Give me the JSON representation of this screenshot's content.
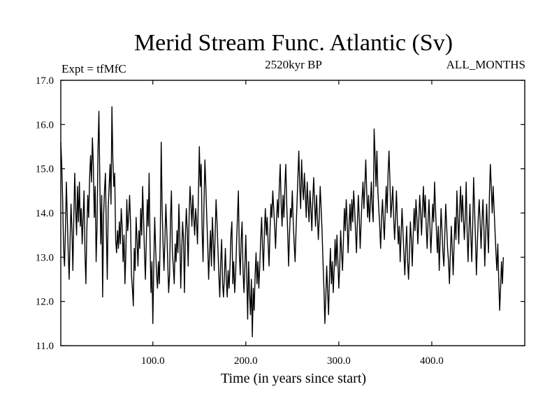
{
  "chart_data": {
    "type": "line",
    "title": "Merid Stream Func. Atlantic (Sv)",
    "subtitle_left": "Expt = tfMfC",
    "subtitle_center": "2520kyr BP",
    "subtitle_right": "ALL_MONTHS",
    "xlabel": "Time (in years since start)",
    "ylabel": "",
    "xlim": [
      1,
      500
    ],
    "ylim": [
      11.0,
      17.0
    ],
    "xticks": [
      100,
      200,
      300,
      400
    ],
    "xtick_labels": [
      "100.0",
      "200.0",
      "300.0",
      "400.0"
    ],
    "yticks": [
      11,
      12,
      13,
      14,
      15,
      16,
      17
    ],
    "ytick_labels": [
      "11.0",
      "12.0",
      "13.0",
      "14.0",
      "15.0",
      "16.0",
      "17.0"
    ],
    "series": [
      {
        "name": "Merid Stream Func. Atlantic",
        "color": "#000000",
        "x_start": 1,
        "x_step": 1,
        "values": [
          15.6,
          15.1,
          14.3,
          13.2,
          12.8,
          13.6,
          14.7,
          13.9,
          13.1,
          12.5,
          13.4,
          14.2,
          13.6,
          12.7,
          13.9,
          14.9,
          14.1,
          13.5,
          14.6,
          13.8,
          14.7,
          13.7,
          14.1,
          13.3,
          13.9,
          14.5,
          13.1,
          12.4,
          13.6,
          14.4,
          13.9,
          14.8,
          15.3,
          14.7,
          15.7,
          15.1,
          13.9,
          14.6,
          12.9,
          13.7,
          15.4,
          16.3,
          14.7,
          13.3,
          14.4,
          12.1,
          13.9,
          14.5,
          14.9,
          13.6,
          12.5,
          14.1,
          14.6,
          15.1,
          14.2,
          16.4,
          15.2,
          14.6,
          14.9,
          13.4,
          13.1,
          13.6,
          13.2,
          13.8,
          13.3,
          14.1,
          13.7,
          12.9,
          13.5,
          12.4,
          13.1,
          14.3,
          13.6,
          13.9,
          14.4,
          13.8,
          12.6,
          12.3,
          11.9,
          13.2,
          12.7,
          13.9,
          13.4,
          12.8,
          13.6,
          13.2,
          14.1,
          13.5,
          14.6,
          13.9,
          13.1,
          12.5,
          13.4,
          14.3,
          13.7,
          14.9,
          13.3,
          12.2,
          12.9,
          11.5,
          12.8,
          13.9,
          13.2,
          12.6,
          12.3,
          12.9,
          12.4,
          13.5,
          15.6,
          14.1,
          13.3,
          12.7,
          13.4,
          14.2,
          13.6,
          12.9,
          12.2,
          12.6,
          13.9,
          14.5,
          13.1,
          12.8,
          12.4,
          13.3,
          12.9,
          13.6,
          13.1,
          14.2,
          13.5,
          12.3,
          13.1,
          13.8,
          13.4,
          12.2,
          13.5,
          14.1,
          13.6,
          12.8,
          13.9,
          14.6,
          14.2,
          13.7,
          14.4,
          13.9,
          13.5,
          14.1,
          13.8,
          13.3,
          14.4,
          15.5,
          14.6,
          15.1,
          13.6,
          12.9,
          14.2,
          15.2,
          14.6,
          13.9,
          13.3,
          12.5,
          13.1,
          13.6,
          12.8,
          13.9,
          13.4,
          12.7,
          13.5,
          14.3,
          13.8,
          13.2,
          12.6,
          12.1,
          12.9,
          13.4,
          12.4,
          12.1,
          12.6,
          13.2,
          12.5,
          12.1,
          12.7,
          12.3,
          12.8,
          13.5,
          13.8,
          12.4,
          12.9,
          12.2,
          12.6,
          13.3,
          13.9,
          14.5,
          13.1,
          12.6,
          13.4,
          13.8,
          12.7,
          12.2,
          12.8,
          13.5,
          12.6,
          11.6,
          12.9,
          12.2,
          11.7,
          12.5,
          11.2,
          12.3,
          11.8,
          12.6,
          13.1,
          12.4,
          12.9,
          12.3,
          12.8,
          13.4,
          13.9,
          13.2,
          12.7,
          13.6,
          14.1,
          13.5,
          13.9,
          13.3,
          12.8,
          13.6,
          14.2,
          13.9,
          14.5,
          14.1,
          13.7,
          13.2,
          13.8,
          14.3,
          13.9,
          14.6,
          15.1,
          14.2,
          13.7,
          14.4,
          13.9,
          14.6,
          15.1,
          14.2,
          13.6,
          12.8,
          13.5,
          14.1,
          13.9,
          14.5,
          13.8,
          13.3,
          12.9,
          13.6,
          14.2,
          14.8,
          15.4,
          14.6,
          14.1,
          15.2,
          14.6,
          14.3,
          14.9,
          14.4,
          13.9,
          14.7,
          14.2,
          13.8,
          14.5,
          14.1,
          13.6,
          14.3,
          14.8,
          14.2,
          13.7,
          14.4,
          13.9,
          13.4,
          13.9,
          14.6,
          14.1,
          13.6,
          12.9,
          12.3,
          11.5,
          12.1,
          12.8,
          12.2,
          11.7,
          12.6,
          13.2,
          12.4,
          12.9,
          12.2,
          12.7,
          13.4,
          12.8,
          13.5,
          12.9,
          12.3,
          12.8,
          13.6,
          13.1,
          12.7,
          13.4,
          14.1,
          13.6,
          14.3,
          13.8,
          13.1,
          13.7,
          14.2,
          13.6,
          14.3,
          13.8,
          14.5,
          14.1,
          13.6,
          13.1,
          13.8,
          14.4,
          13.9,
          13.2,
          13.8,
          14.3,
          14.7,
          14.1,
          14.6,
          15.2,
          14.5,
          13.9,
          14.4,
          13.8,
          14.2,
          14.7,
          14.1,
          13.8,
          15.9,
          15.3,
          14.6,
          15.4,
          14.5,
          14.1,
          13.7,
          13.2,
          13.9,
          14.3,
          13.8,
          13.4,
          14.1,
          14.6,
          14.0,
          14.9,
          15.4,
          14.7,
          13.9,
          14.2,
          14.6,
          13.9,
          13.4,
          13.9,
          14.5,
          13.8,
          13.3,
          13.7,
          12.9,
          13.5,
          14.1,
          13.6,
          13.1,
          12.6,
          13.2,
          13.7,
          12.9,
          12.5,
          13.1,
          13.8,
          13.4,
          12.8,
          13.5,
          14.1,
          13.6,
          14.3,
          13.9,
          13.3,
          13.8,
          14.4,
          14.0,
          13.5,
          14.1,
          14.6,
          13.9,
          14.4,
          13.7,
          13.2,
          13.8,
          14.3,
          13.7,
          13.1,
          13.6,
          14.2,
          13.8,
          14.7,
          14.1,
          13.6,
          13.1,
          13.7,
          12.7,
          13.4,
          14.1,
          13.6,
          13.1,
          12.8,
          13.5,
          14.2,
          13.7,
          13.2,
          12.9,
          12.4,
          13.1,
          13.7,
          13.2,
          12.6,
          13.3,
          13.9,
          13.4,
          14.5,
          13.9,
          13.3,
          14.1,
          14.6,
          13.8,
          14.4,
          13.9,
          13.4,
          13.9,
          14.7,
          13.6,
          12.9,
          13.6,
          14.2,
          13.5,
          12.9,
          13.7,
          14.8,
          14.1,
          13.4,
          12.6,
          13.3,
          13.9,
          14.3,
          13.8,
          13.2,
          13.8,
          14.3,
          13.7,
          12.8,
          13.5,
          14.2,
          13.6,
          13.1,
          14.4,
          15.1,
          14.6,
          14.0,
          14.6,
          14.1,
          13.6,
          13.1,
          12.7,
          13.3,
          12.5,
          11.8,
          12.3,
          12.9,
          12.4,
          13.0
        ]
      }
    ]
  }
}
